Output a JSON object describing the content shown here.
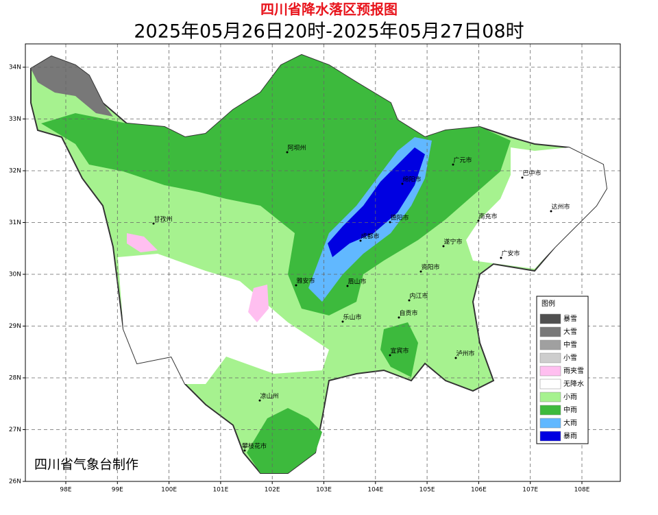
{
  "title": "四川省降水落区预报图",
  "subtitle": "2025年05月26日20时-2025年05月27日08时",
  "credit": "四川省气象台制作",
  "axes": {
    "lat_ticks": [
      {
        "value": 34,
        "label": "34N"
      },
      {
        "value": 33,
        "label": "33N"
      },
      {
        "value": 32,
        "label": "32N"
      },
      {
        "value": 31,
        "label": "31N"
      },
      {
        "value": 30,
        "label": "30N"
      },
      {
        "value": 29,
        "label": "29N"
      },
      {
        "value": 28,
        "label": "28N"
      },
      {
        "value": 27,
        "label": "27N"
      },
      {
        "value": 26,
        "label": "26N"
      }
    ],
    "lon_ticks": [
      {
        "value": 98,
        "label": "98E"
      },
      {
        "value": 99,
        "label": "99E"
      },
      {
        "value": 100,
        "label": "100E"
      },
      {
        "value": 101,
        "label": "101E"
      },
      {
        "value": 102,
        "label": "102E"
      },
      {
        "value": 103,
        "label": "103E"
      },
      {
        "value": 104,
        "label": "104E"
      },
      {
        "value": 105,
        "label": "105E"
      },
      {
        "value": 106,
        "label": "106E"
      },
      {
        "value": 107,
        "label": "107E"
      },
      {
        "value": 108,
        "label": "108E"
      }
    ]
  },
  "cities": [
    "阿坝州",
    "甘孜州",
    "广元市",
    "巴中市",
    "绵阳市",
    "达州市",
    "南充市",
    "德阳市",
    "成都市",
    "遂宁市",
    "广安市",
    "雅安市",
    "眉山市",
    "资阳市",
    "内江市",
    "乐山市",
    "自贡市",
    "宜宾市",
    "泸州市",
    "凉山州",
    "攀枝花市"
  ],
  "legend": {
    "title": "图例",
    "items": [
      {
        "label": "暴雪",
        "color": "#505050"
      },
      {
        "label": "大雪",
        "color": "#787878"
      },
      {
        "label": "中雪",
        "color": "#a0a0a0"
      },
      {
        "label": "小雪",
        "color": "#cdcdcd"
      },
      {
        "label": "雨夹雪",
        "color": "#ffbff0"
      },
      {
        "label": "无降水",
        "color": "#ffffff"
      },
      {
        "label": "小雨",
        "color": "#a6f28f"
      },
      {
        "label": "中雨",
        "color": "#3dba3d"
      },
      {
        "label": "大雨",
        "color": "#61b8ff"
      },
      {
        "label": "暴雨",
        "color": "#0000e1"
      }
    ]
  }
}
